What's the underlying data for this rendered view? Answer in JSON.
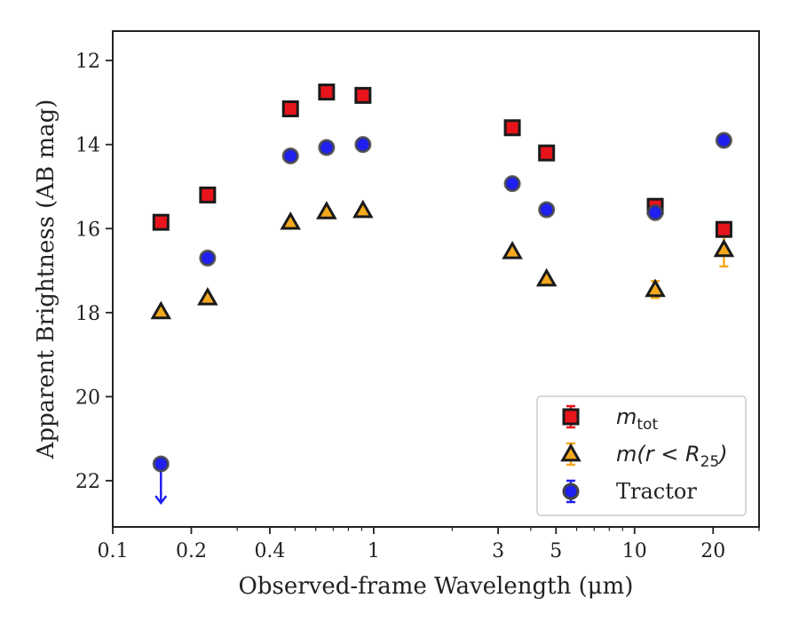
{
  "chart_data": {
    "type": "scatter",
    "title": "",
    "xlabel": "Observed-frame Wavelength (μm)",
    "ylabel": "Apparent Brightness (AB mag)",
    "xscale": "log",
    "xlim": [
      0.1,
      30
    ],
    "ylim": [
      23.1,
      11.3
    ],
    "y_inverted": true,
    "xticks": [
      0.1,
      0.2,
      0.4,
      1,
      3,
      5,
      10,
      20
    ],
    "xtick_labels": [
      "0.1",
      "0.2",
      "0.4",
      "1",
      "3",
      "5",
      "10",
      "20"
    ],
    "yticks": [
      12,
      14,
      16,
      18,
      20,
      22
    ],
    "ytick_labels": [
      "12",
      "14",
      "16",
      "18",
      "20",
      "22"
    ],
    "legend_position": "lower-right",
    "series": [
      {
        "name": "m_tot",
        "legend_main": "m",
        "legend_sub": "tot",
        "marker": "square",
        "face_color": "#e8141c",
        "edge_color": "#1a1a1a",
        "err_color": "#e8141c",
        "x": [
          0.153,
          0.231,
          0.48,
          0.66,
          0.91,
          3.4,
          4.6,
          12.0,
          22.0
        ],
        "y": [
          15.85,
          15.2,
          13.15,
          12.75,
          12.83,
          13.6,
          14.2,
          15.47,
          16.02
        ],
        "yerr": [
          0.05,
          0.05,
          0.03,
          0.03,
          0.03,
          0.03,
          0.05,
          0.08,
          0.12
        ]
      },
      {
        "name": "m(r < R25)",
        "legend_main": "m(r < R",
        "legend_sub": "25",
        "legend_tail": ")",
        "marker": "triangle",
        "face_color": "#f4a81d",
        "edge_color": "#1a1a1a",
        "err_color": "#f4a81d",
        "x": [
          0.153,
          0.231,
          0.48,
          0.66,
          0.91,
          3.4,
          4.6,
          12.0,
          22.0
        ],
        "y": [
          17.98,
          17.65,
          15.85,
          15.6,
          15.57,
          16.55,
          17.2,
          17.45,
          16.5
        ],
        "yerr": [
          0.05,
          0.05,
          0.03,
          0.03,
          0.03,
          0.05,
          0.05,
          0.2,
          0.4
        ]
      },
      {
        "name": "Tractor",
        "legend_main": "Tractor",
        "marker": "circle",
        "face_color": "#1f1ff0",
        "edge_color": "#444444",
        "err_color": "#1f1ff0",
        "x": [
          0.153,
          0.231,
          0.48,
          0.66,
          0.91,
          3.4,
          4.6,
          12.0,
          22.0
        ],
        "y": [
          21.6,
          16.7,
          14.27,
          14.07,
          14.0,
          14.93,
          15.55,
          15.62,
          13.9
        ],
        "yerr": [
          0,
          0.05,
          0.03,
          0.03,
          0.03,
          0.03,
          0.03,
          0.05,
          0.05
        ],
        "upper_limit": [
          true,
          false,
          false,
          false,
          false,
          false,
          false,
          false,
          false
        ]
      }
    ]
  }
}
